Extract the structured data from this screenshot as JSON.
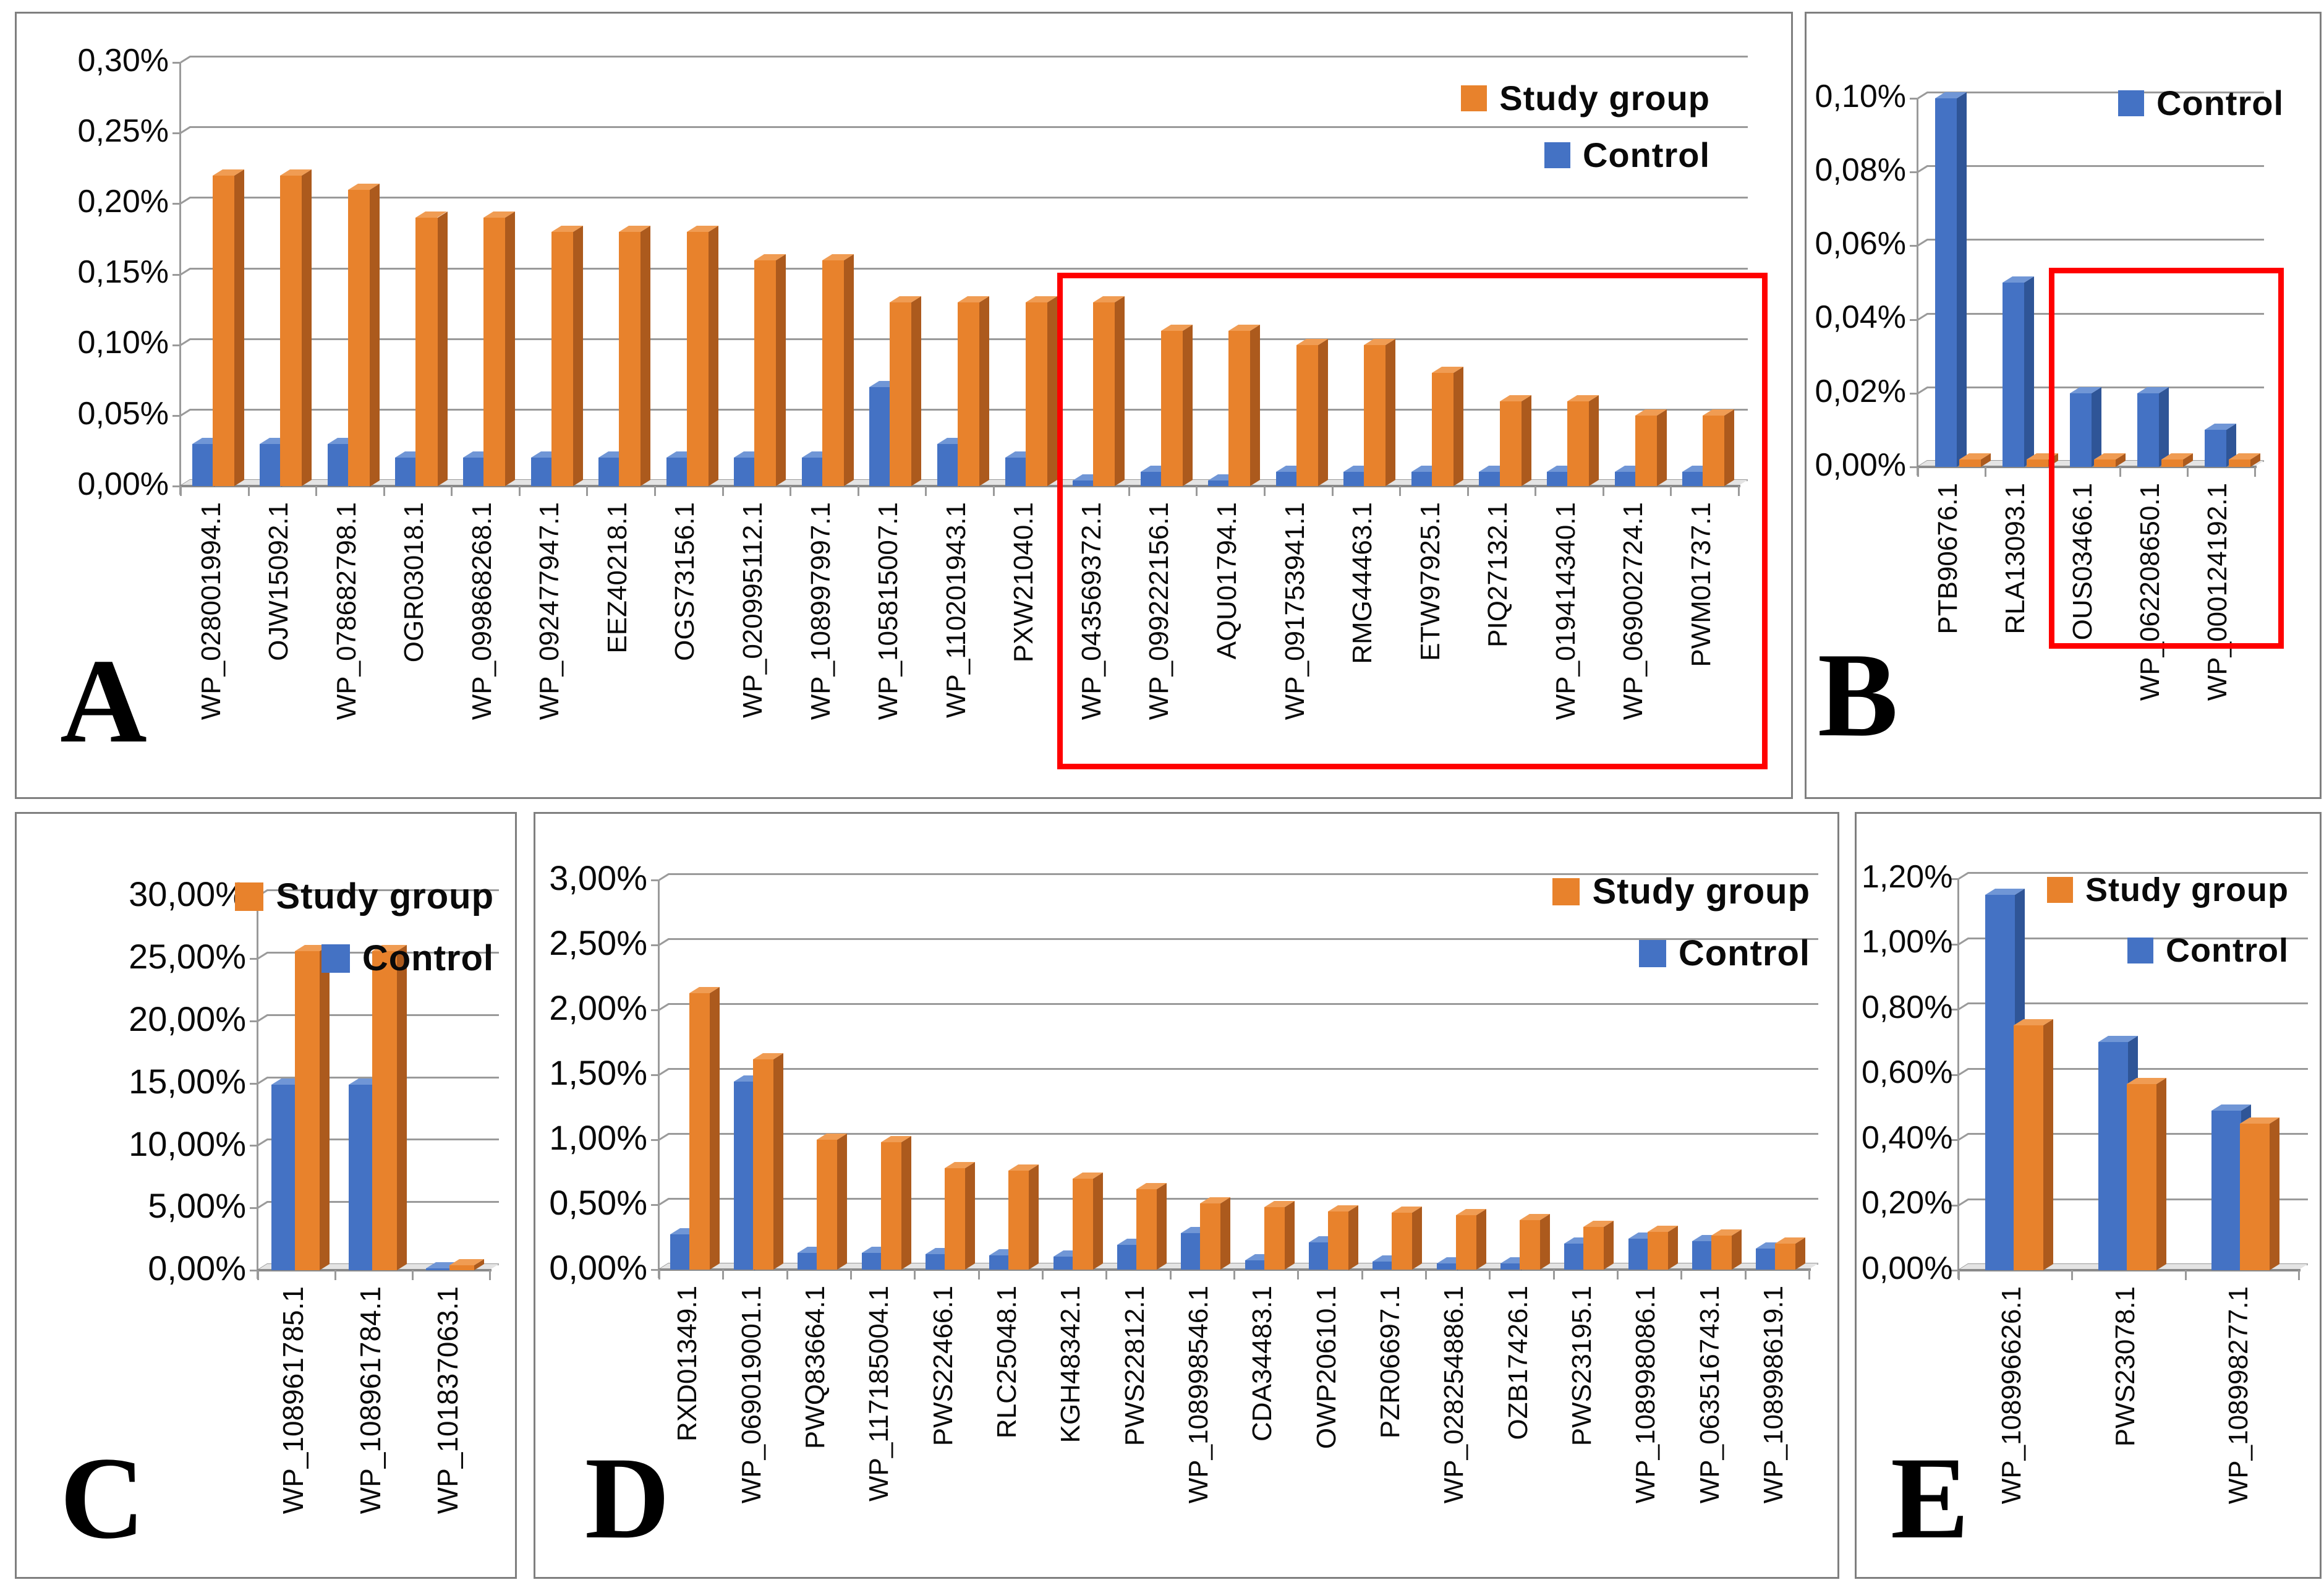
{
  "legend": {
    "study_label": "Study group",
    "control_label": "Control"
  },
  "colors": {
    "study_face": "#E8822C",
    "study_side": "#AC5A1D",
    "study_top": "#F09C53",
    "control_face": "#4472C4",
    "control_side": "#2F5597",
    "control_top": "#7096D6",
    "grid": "#9a9a9a",
    "red_box": "#FF0000",
    "text": "#0a0a0a"
  },
  "chart_data": [
    {
      "id": "A",
      "letter": "A",
      "type": "bar",
      "grid": true,
      "ylim": [
        0,
        0.3
      ],
      "ytick_step": 0.05,
      "yticks": [
        "0,00%",
        "0,05%",
        "0,10%",
        "0,15%",
        "0,20%",
        "0,25%",
        "0,30%"
      ],
      "categories": [
        "WP_028001994.1",
        "OJW15092.1",
        "WP_078682798.1",
        "OGR03018.1",
        "WP_099868268.1",
        "WP_092477947.1",
        "EEZ40218.1",
        "OGS73156.1",
        "WP_020995112.1",
        "WP_108997997.1",
        "WP_105815007.1",
        "WP_110201943.1",
        "PXW21040.1",
        "WP_043569372.1",
        "WP_099222156.1",
        "AQU01794.1",
        "WP_091753941.1",
        "RMG44463.1",
        "ETW97925.1",
        "PIQ27132.1",
        "WP_019414340.1",
        "WP_069002724.1",
        "PWM01737.1"
      ],
      "series": [
        {
          "name": "Study group",
          "color_key": "study",
          "values": [
            0.22,
            0.22,
            0.21,
            0.19,
            0.19,
            0.18,
            0.18,
            0.18,
            0.16,
            0.16,
            0.13,
            0.13,
            0.13,
            0.13,
            0.11,
            0.11,
            0.1,
            0.1,
            0.08,
            0.06,
            0.06,
            0.05,
            0.05
          ]
        },
        {
          "name": "Control",
          "color_key": "control",
          "values": [
            0.03,
            0.03,
            0.03,
            0.02,
            0.02,
            0.02,
            0.02,
            0.02,
            0.02,
            0.02,
            0.07,
            0.03,
            0.02,
            0.004,
            0.01,
            0.004,
            0.01,
            0.01,
            0.01,
            0.01,
            0.01,
            0.01,
            0.01
          ]
        }
      ],
      "legend_items": [
        "study",
        "control"
      ],
      "legend_position": "top-right",
      "red_box": {
        "from_index": 13,
        "to_index": 22,
        "top_value_pct": 0.151
      }
    },
    {
      "id": "B",
      "letter": "B",
      "type": "bar",
      "grid": true,
      "ylim": [
        0,
        0.1
      ],
      "ytick_step": 0.02,
      "yticks": [
        "0,00%",
        "0,02%",
        "0,04%",
        "0,06%",
        "0,08%",
        "0,10%"
      ],
      "categories": [
        "PTB90676.1",
        "RLA13093.1",
        "OUS03466.1",
        "WP_062208650.1",
        "WP_000124192.1"
      ],
      "series": [
        {
          "name": "Study group",
          "color_key": "study",
          "values": [
            0.002,
            0.002,
            0.002,
            0.002,
            0.002
          ]
        },
        {
          "name": "Control",
          "color_key": "control",
          "values": [
            0.1,
            0.05,
            0.02,
            0.02,
            0.01
          ]
        }
      ],
      "legend_items": [
        "control"
      ],
      "legend_position": "top-right",
      "red_box": {
        "from_index": 2,
        "to_index": 4,
        "top_value_pct": 0.054
      }
    },
    {
      "id": "C",
      "letter": "C",
      "type": "bar",
      "grid": true,
      "ylim": [
        0,
        30.0
      ],
      "ytick_step": 5.0,
      "yticks": [
        "0,00%",
        "5,00%",
        "10,00%",
        "15,00%",
        "20,00%",
        "25,00%",
        "30,00%"
      ],
      "categories": [
        "WP_108961785.1",
        "WP_108961784.1",
        "WP_101837063.1"
      ],
      "series": [
        {
          "name": "Study group",
          "color_key": "study",
          "values": [
            25.6,
            25.6,
            0.4
          ]
        },
        {
          "name": "Control",
          "color_key": "control",
          "values": [
            14.9,
            14.9,
            0.15
          ]
        }
      ],
      "legend_items": [
        "study",
        "control"
      ],
      "legend_position": "top-right",
      "red_box": null
    },
    {
      "id": "D",
      "letter": "D",
      "type": "bar",
      "grid": true,
      "ylim": [
        0,
        3.0
      ],
      "ytick_step": 0.5,
      "yticks": [
        "0,00%",
        "0,50%",
        "1,00%",
        "1,50%",
        "2,00%",
        "2,50%",
        "3,00%"
      ],
      "categories": [
        "RXD01349.1",
        "WP_069019001.1",
        "PWQ83664.1",
        "WP_117185004.1",
        "PWS22466.1",
        "RLC25048.1",
        "KGH48342.1",
        "PWS22812.1",
        "WP_108998546.1",
        "CDA34483.1",
        "OWP20610.1",
        "PZR06697.1",
        "WP_028254886.1",
        "OZB17426.1",
        "PWS23195.1",
        "WP_108998086.1",
        "WP_063516743.1",
        "WP_108998619.1"
      ],
      "series": [
        {
          "name": "Study group",
          "color_key": "study",
          "values": [
            2.13,
            1.62,
            1.0,
            0.98,
            0.78,
            0.76,
            0.7,
            0.62,
            0.51,
            0.48,
            0.45,
            0.44,
            0.42,
            0.38,
            0.33,
            0.29,
            0.26,
            0.2
          ]
        },
        {
          "name": "Control",
          "color_key": "control",
          "values": [
            0.27,
            1.45,
            0.13,
            0.13,
            0.12,
            0.11,
            0.1,
            0.19,
            0.28,
            0.07,
            0.21,
            0.06,
            0.05,
            0.05,
            0.2,
            0.24,
            0.22,
            0.16
          ]
        }
      ],
      "legend_items": [
        "study",
        "control"
      ],
      "legend_position": "top-right",
      "red_box": null
    },
    {
      "id": "E",
      "letter": "E",
      "type": "bar",
      "grid": true,
      "ylim": [
        0,
        1.2
      ],
      "ytick_step": 0.2,
      "yticks": [
        "0,00%",
        "0,20%",
        "0,40%",
        "0,60%",
        "0,80%",
        "1,00%",
        "1,20%"
      ],
      "categories": [
        "WP_108996626.1",
        "PWS23078.1",
        "WP_108998277.1"
      ],
      "series": [
        {
          "name": "Study group",
          "color_key": "study",
          "values": [
            0.75,
            0.57,
            0.45
          ]
        },
        {
          "name": "Control",
          "color_key": "control",
          "values": [
            1.15,
            0.7,
            0.49
          ]
        }
      ],
      "legend_items": [
        "study",
        "control"
      ],
      "legend_position": "top-right",
      "red_box": null
    }
  ]
}
